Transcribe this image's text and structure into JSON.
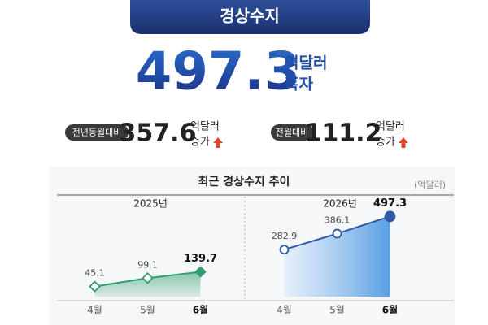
{
  "header": {
    "title": "경상수지"
  },
  "headline": {
    "value": 497.3,
    "unit": "억달러",
    "status": "흑자"
  },
  "comparisons": [
    {
      "label": "전년동월대비",
      "value": 357.6,
      "unit": "억달러",
      "change": "증가"
    },
    {
      "label": "전월대비",
      "value": 111.2,
      "unit": "억달러",
      "change": "증가"
    }
  ],
  "chart_section": {
    "title": "최근 경상수지 추이",
    "unit": "(억달러)"
  },
  "chart_data": [
    {
      "type": "line",
      "title": "2025년",
      "categories": [
        "4월",
        "5월",
        "6월"
      ],
      "values": [
        45.1,
        99.1,
        139.7
      ],
      "color": "#2e9e6e",
      "marker": "diamond",
      "ylim": [
        -20,
        520
      ]
    },
    {
      "type": "line",
      "title": "2026년",
      "categories": [
        "4월",
        "5월",
        "6월"
      ],
      "values": [
        282.9,
        386.1,
        497.3
      ],
      "color": "#2c58a6",
      "marker": "circle",
      "ylim": [
        -20,
        520
      ]
    }
  ]
}
